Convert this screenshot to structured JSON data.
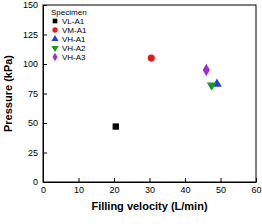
{
  "chart_data": {
    "type": "scatter",
    "x_label": "Filling velocity (L/min)",
    "y_label": "Pressure (kPa)",
    "legend_title": "Specimen",
    "legend": "upper-left",
    "xlim": [
      0,
      60
    ],
    "xticks": [
      0,
      10,
      20,
      30,
      40,
      50,
      60
    ],
    "ylim": [
      0,
      150
    ],
    "yticks": [
      0,
      25,
      50,
      75,
      100,
      125,
      150
    ],
    "grid": false,
    "series": [
      {
        "name": "VL-A1",
        "color": "#000000",
        "marker": "square",
        "x": [
          20.5
        ],
        "values": [
          47
        ]
      },
      {
        "name": "VM-A1",
        "color": "#e41a1c",
        "marker": "circle",
        "x": [
          30.5
        ],
        "values": [
          105
        ]
      },
      {
        "name": "VH-A1",
        "color": "#1f3fd6",
        "marker": "triangle-up",
        "x": [
          49
        ],
        "values": [
          83
        ]
      },
      {
        "name": "VH-A2",
        "color": "#1a9a1a",
        "marker": "triangle-down",
        "x": [
          47.5
        ],
        "values": [
          82
        ]
      },
      {
        "name": "VH-A3",
        "color": "#9b30d9",
        "marker": "diamond",
        "x": [
          46
        ],
        "values": [
          95
        ]
      }
    ]
  }
}
